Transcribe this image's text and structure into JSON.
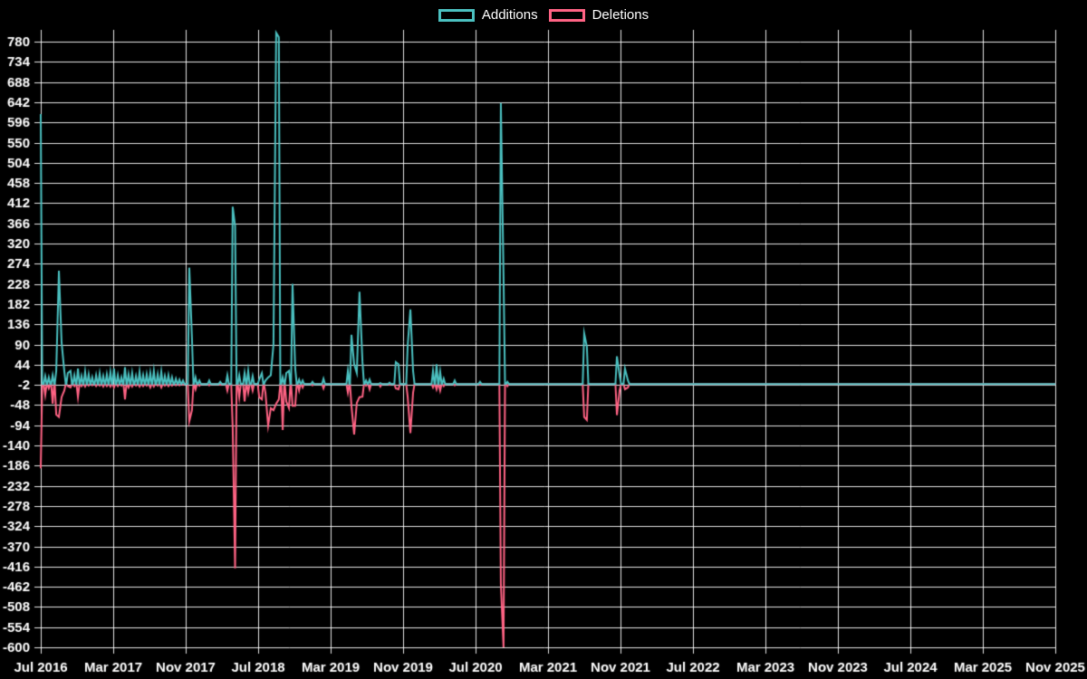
{
  "page": {
    "background": "#000000",
    "text_color": "#ffffff",
    "grid_color": "rgba(255,255,255,0.9)"
  },
  "legend": {
    "position": "top",
    "items": [
      {
        "label": "Additions",
        "color": "#4bc0c0"
      },
      {
        "label": "Deletions",
        "color": "#ff6384"
      }
    ]
  },
  "chart_data": {
    "type": "line",
    "title": "",
    "xlabel": "",
    "ylabel": "",
    "grid": true,
    "legend_position": "top",
    "x_axis": {
      "start_date": "2016-07-01",
      "end_date": "2025-11-01",
      "tick_labels": [
        "Jul 2016",
        "Mar 2017",
        "Nov 2017",
        "Jul 2018",
        "Mar 2019",
        "Nov 2019",
        "Jul 2020",
        "Mar 2021",
        "Nov 2021",
        "Jul 2022",
        "Mar 2023",
        "Nov 2023",
        "Jul 2024",
        "Mar 2025",
        "Nov 2025"
      ],
      "tick_month_offsets": [
        0,
        8,
        16,
        24,
        32,
        40,
        48,
        56,
        64,
        72,
        80,
        88,
        96,
        104,
        112
      ]
    },
    "y_axis": {
      "min": -600,
      "max": 780,
      "tick_step": 46,
      "ticks": [
        780,
        734,
        688,
        642,
        596,
        550,
        504,
        458,
        412,
        366,
        320,
        274,
        228,
        182,
        136,
        90,
        44,
        -2,
        -48,
        -94,
        -140,
        -186,
        -232,
        -278,
        -324,
        -370,
        -416,
        -462,
        -508,
        -554,
        -600
      ]
    },
    "baseline": 0,
    "series": [
      {
        "name": "Additions",
        "color": "#4bc0c0",
        "points": [
          [
            "2016-07-01",
            615
          ],
          [
            "2016-07-16",
            18
          ],
          [
            "2016-07-28",
            15
          ],
          [
            "2016-08-10",
            20
          ],
          [
            "2016-08-22",
            30
          ],
          [
            "2016-08-31",
            258
          ],
          [
            "2016-09-09",
            95
          ],
          [
            "2016-09-18",
            30
          ],
          [
            "2016-09-30",
            25
          ],
          [
            "2016-10-09",
            30
          ],
          [
            "2016-10-22",
            20
          ],
          [
            "2016-11-03",
            35
          ],
          [
            "2016-11-15",
            18
          ],
          [
            "2016-11-27",
            28
          ],
          [
            "2016-12-09",
            22
          ],
          [
            "2016-12-21",
            15
          ],
          [
            "2017-01-03",
            20
          ],
          [
            "2017-01-15",
            24
          ],
          [
            "2017-01-27",
            18
          ],
          [
            "2017-02-08",
            22
          ],
          [
            "2017-02-20",
            27
          ],
          [
            "2017-03-04",
            35
          ],
          [
            "2017-03-17",
            20
          ],
          [
            "2017-03-29",
            15
          ],
          [
            "2017-04-10",
            38
          ],
          [
            "2017-04-22",
            22
          ],
          [
            "2017-05-04",
            25
          ],
          [
            "2017-05-17",
            18
          ],
          [
            "2017-05-29",
            28
          ],
          [
            "2017-06-10",
            20
          ],
          [
            "2017-06-22",
            22
          ],
          [
            "2017-07-04",
            25
          ],
          [
            "2017-07-16",
            30
          ],
          [
            "2017-07-29",
            22
          ],
          [
            "2017-08-10",
            28
          ],
          [
            "2017-08-22",
            18
          ],
          [
            "2017-09-03",
            20
          ],
          [
            "2017-09-15",
            15
          ],
          [
            "2017-09-28",
            12
          ],
          [
            "2017-10-10",
            10
          ],
          [
            "2017-10-22",
            8
          ],
          [
            "2017-11-12",
            265
          ],
          [
            "2017-11-21",
            105
          ],
          [
            "2017-12-03",
            15
          ],
          [
            "2017-12-16",
            8
          ],
          [
            "2018-01-18",
            8
          ],
          [
            "2018-02-24",
            5
          ],
          [
            "2018-03-20",
            20
          ],
          [
            "2018-04-07",
            404
          ],
          [
            "2018-04-15",
            360
          ],
          [
            "2018-04-29",
            20
          ],
          [
            "2018-05-17",
            25
          ],
          [
            "2018-05-29",
            30
          ],
          [
            "2018-06-13",
            18
          ],
          [
            "2018-07-05",
            10
          ],
          [
            "2018-07-14",
            25
          ],
          [
            "2018-07-26",
            8
          ],
          [
            "2018-08-04",
            15
          ],
          [
            "2018-08-13",
            20
          ],
          [
            "2018-08-22",
            90
          ],
          [
            "2018-08-31",
            800
          ],
          [
            "2018-09-09",
            790
          ],
          [
            "2018-09-22",
            15
          ],
          [
            "2018-10-04",
            25
          ],
          [
            "2018-10-13",
            30
          ],
          [
            "2018-10-25",
            228
          ],
          [
            "2018-11-03",
            35
          ],
          [
            "2018-11-16",
            10
          ],
          [
            "2018-11-28",
            8
          ],
          [
            "2018-12-31",
            5
          ],
          [
            "2019-02-06",
            12
          ],
          [
            "2019-04-29",
            30
          ],
          [
            "2019-05-11",
            112
          ],
          [
            "2019-05-20",
            45
          ],
          [
            "2019-05-29",
            25
          ],
          [
            "2019-06-07",
            210
          ],
          [
            "2019-06-17",
            50
          ],
          [
            "2019-06-29",
            8
          ],
          [
            "2019-07-11",
            10
          ],
          [
            "2019-08-16",
            2
          ],
          [
            "2019-09-16",
            3
          ],
          [
            "2019-10-07",
            50
          ],
          [
            "2019-10-16",
            45
          ],
          [
            "2019-11-16",
            88
          ],
          [
            "2019-11-25",
            170
          ],
          [
            "2019-12-04",
            30
          ],
          [
            "2020-02-09",
            30
          ],
          [
            "2020-02-21",
            45
          ],
          [
            "2020-03-04",
            28
          ],
          [
            "2020-03-16",
            12
          ],
          [
            "2020-04-22",
            8
          ],
          [
            "2020-07-16",
            5
          ],
          [
            "2020-09-24",
            640
          ],
          [
            "2020-10-03",
            245
          ],
          [
            "2020-10-16",
            5
          ],
          [
            "2021-07-01",
            115
          ],
          [
            "2021-07-10",
            85
          ],
          [
            "2021-10-19",
            63
          ],
          [
            "2021-10-28",
            20
          ],
          [
            "2021-11-15",
            35
          ],
          [
            "2021-11-25",
            8
          ]
        ]
      },
      {
        "name": "Deletions",
        "color": "#ff6384",
        "points": [
          [
            "2016-07-01",
            -192
          ],
          [
            "2016-07-16",
            -25
          ],
          [
            "2016-07-28",
            -10
          ],
          [
            "2016-08-10",
            -45
          ],
          [
            "2016-08-22",
            -70
          ],
          [
            "2016-08-31",
            -75
          ],
          [
            "2016-09-09",
            -30
          ],
          [
            "2016-09-18",
            -15
          ],
          [
            "2016-09-30",
            -5
          ],
          [
            "2016-10-09",
            -8
          ],
          [
            "2016-10-22",
            -5
          ],
          [
            "2016-11-03",
            -30
          ],
          [
            "2016-11-15",
            -5
          ],
          [
            "2016-11-27",
            -6
          ],
          [
            "2016-12-09",
            -4
          ],
          [
            "2016-12-21",
            -3
          ],
          [
            "2017-01-03",
            -5
          ],
          [
            "2017-01-15",
            -4
          ],
          [
            "2017-01-27",
            -6
          ],
          [
            "2017-02-08",
            -5
          ],
          [
            "2017-02-20",
            -6
          ],
          [
            "2017-03-04",
            -8
          ],
          [
            "2017-03-17",
            -5
          ],
          [
            "2017-03-29",
            -4
          ],
          [
            "2017-04-10",
            -35
          ],
          [
            "2017-04-22",
            -8
          ],
          [
            "2017-05-04",
            -6
          ],
          [
            "2017-05-17",
            -4
          ],
          [
            "2017-05-29",
            -6
          ],
          [
            "2017-06-10",
            -5
          ],
          [
            "2017-06-22",
            -4
          ],
          [
            "2017-07-04",
            -8
          ],
          [
            "2017-07-16",
            -6
          ],
          [
            "2017-07-29",
            -4
          ],
          [
            "2017-08-10",
            -8
          ],
          [
            "2017-08-22",
            -4
          ],
          [
            "2017-09-03",
            -5
          ],
          [
            "2017-09-15",
            -4
          ],
          [
            "2017-09-28",
            -3
          ],
          [
            "2017-10-10",
            -3
          ],
          [
            "2017-10-22",
            -2
          ],
          [
            "2017-11-12",
            -85
          ],
          [
            "2017-11-21",
            -60
          ],
          [
            "2017-12-03",
            -12
          ],
          [
            "2017-12-16",
            -4
          ],
          [
            "2018-01-18",
            -3
          ],
          [
            "2018-02-24",
            -2
          ],
          [
            "2018-03-20",
            -15
          ],
          [
            "2018-04-07",
            -100
          ],
          [
            "2018-04-15",
            -420
          ],
          [
            "2018-04-29",
            -30
          ],
          [
            "2018-05-17",
            -40
          ],
          [
            "2018-05-29",
            -20
          ],
          [
            "2018-06-13",
            -15
          ],
          [
            "2018-07-05",
            -30
          ],
          [
            "2018-07-14",
            -35
          ],
          [
            "2018-07-26",
            -20
          ],
          [
            "2018-08-04",
            -95
          ],
          [
            "2018-08-13",
            -55
          ],
          [
            "2018-08-22",
            -60
          ],
          [
            "2018-08-31",
            -45
          ],
          [
            "2018-09-09",
            -35
          ],
          [
            "2018-09-22",
            -105
          ],
          [
            "2018-10-04",
            -40
          ],
          [
            "2018-10-13",
            -55
          ],
          [
            "2018-10-25",
            -50
          ],
          [
            "2018-11-03",
            -50
          ],
          [
            "2018-11-16",
            -15
          ],
          [
            "2018-11-28",
            -8
          ],
          [
            "2018-12-31",
            -3
          ],
          [
            "2019-02-06",
            -10
          ],
          [
            "2019-04-29",
            -20
          ],
          [
            "2019-05-11",
            -50
          ],
          [
            "2019-05-20",
            -115
          ],
          [
            "2019-05-29",
            -43
          ],
          [
            "2019-06-07",
            -30
          ],
          [
            "2019-06-17",
            -29
          ],
          [
            "2019-06-29",
            -4
          ],
          [
            "2019-07-11",
            -12
          ],
          [
            "2019-08-16",
            -6
          ],
          [
            "2019-09-16",
            -2
          ],
          [
            "2019-10-07",
            -10
          ],
          [
            "2019-10-16",
            -12
          ],
          [
            "2019-11-16",
            -30
          ],
          [
            "2019-11-25",
            -112
          ],
          [
            "2019-12-04",
            -20
          ],
          [
            "2020-02-09",
            -8
          ],
          [
            "2020-02-21",
            -12
          ],
          [
            "2020-03-04",
            -15
          ],
          [
            "2020-03-16",
            -5
          ],
          [
            "2020-04-22",
            -3
          ],
          [
            "2020-07-16",
            -2
          ],
          [
            "2020-09-24",
            -455
          ],
          [
            "2020-10-03",
            -600
          ],
          [
            "2020-10-16",
            -5
          ],
          [
            "2021-07-01",
            -75
          ],
          [
            "2021-07-10",
            -82
          ],
          [
            "2021-10-19",
            -71
          ],
          [
            "2021-10-28",
            -15
          ],
          [
            "2021-11-15",
            -12
          ],
          [
            "2021-11-25",
            -8
          ]
        ]
      }
    ]
  }
}
